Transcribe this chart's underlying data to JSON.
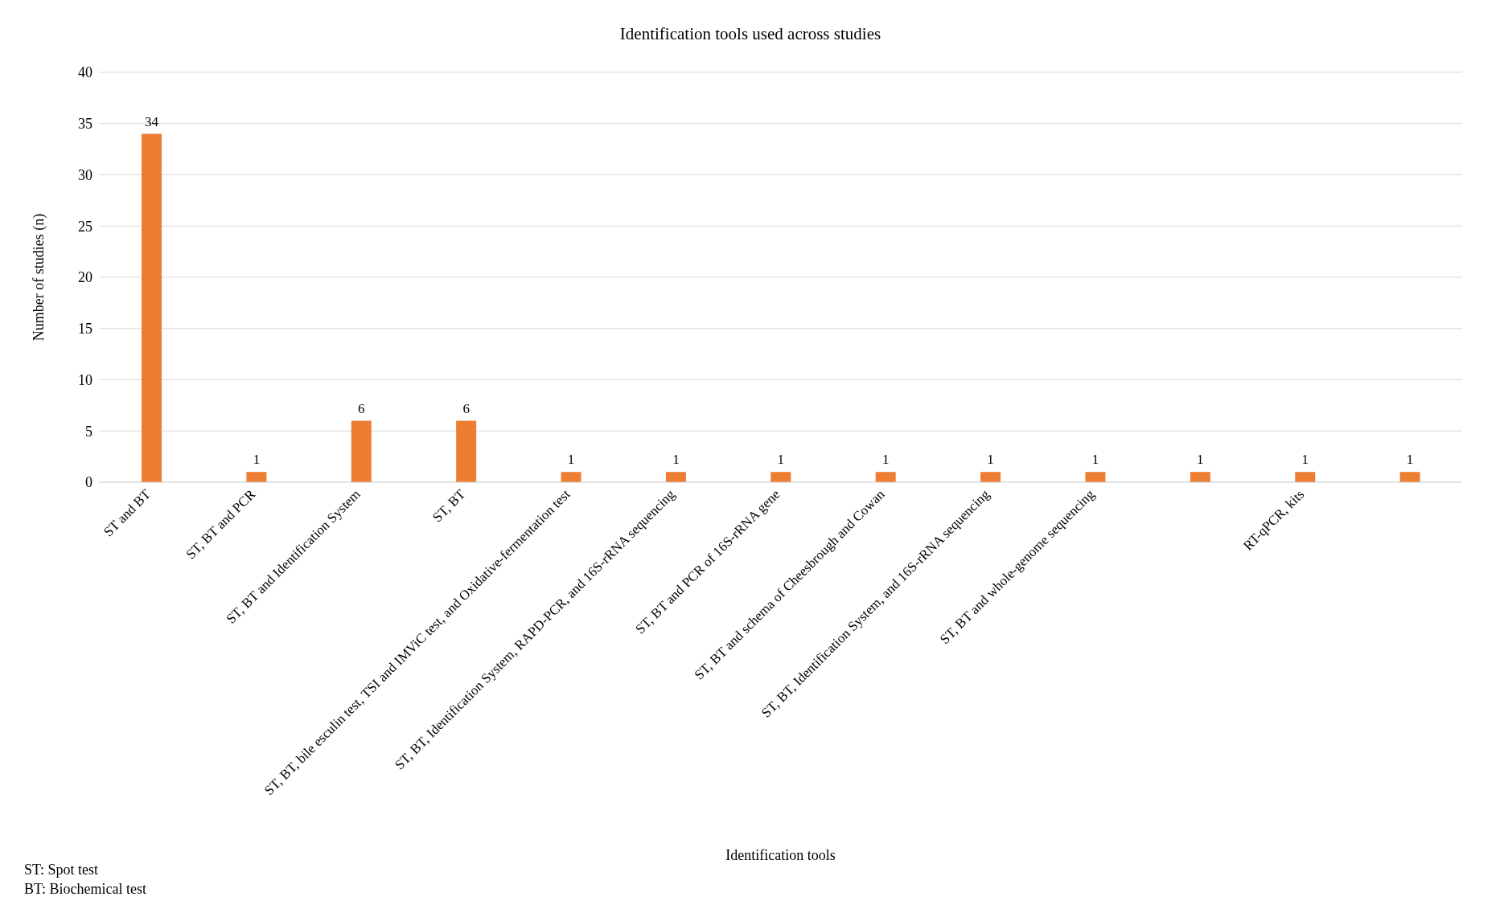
{
  "chart_data": {
    "type": "bar",
    "title": "Identification tools used across studies",
    "xlabel": "Identification tools",
    "ylabel": "Number of studies (n)",
    "categories": [
      "ST and BT",
      "ST, BT and PCR",
      "ST, BT and Identification System",
      "ST, BT",
      "ST, BT, bile esculin test, TSI and IMViC test, and Oxidative-fermentation test",
      "ST, BT, Identification System, RAPD-PCR, and 16S-rRNA sequencing",
      "ST, BT and PCR of 16S-rRNA gene",
      "ST, BT and schema of Cheesbrough and Cowan",
      "ST, BT, Identification System, and 16S-rRNA sequencing",
      "ST, BT and whole-genome sequencing",
      null,
      "RT-qPCR, kits",
      null
    ],
    "values": [
      34,
      1,
      6,
      6,
      1,
      1,
      1,
      1,
      1,
      1,
      1,
      1,
      1
    ],
    "color": "#ed7d31",
    "ylim": [
      0,
      40
    ],
    "yticks": [
      0,
      5,
      10,
      15,
      20,
      25,
      30,
      35,
      40
    ],
    "grid": "y",
    "data_labels": true,
    "annotations": [
      "ST: Spot test",
      "BT: Biochemical test"
    ]
  }
}
